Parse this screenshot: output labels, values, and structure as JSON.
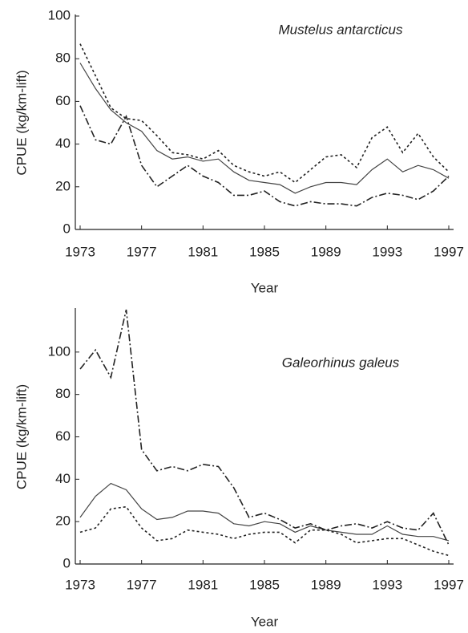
{
  "chart_data": [
    {
      "type": "line",
      "title": "Mustelus antarcticus",
      "x_label": "Year",
      "y_label": "CPUE (kg/km-lift)",
      "x": [
        1973,
        1974,
        1975,
        1976,
        1977,
        1978,
        1979,
        1980,
        1981,
        1982,
        1983,
        1984,
        1985,
        1986,
        1987,
        1988,
        1989,
        1990,
        1991,
        1992,
        1993,
        1994,
        1995,
        1996,
        1997
      ],
      "xlim": [
        1973,
        1997
      ],
      "xticks": [
        1973,
        1977,
        1981,
        1985,
        1989,
        1993,
        1997
      ],
      "ylim": [
        0,
        100
      ],
      "yticks": [
        0,
        20,
        40,
        60,
        80,
        100
      ],
      "series": [
        {
          "color": "#444444",
          "dash": "none",
          "values": [
            78,
            66,
            56,
            50,
            46,
            37,
            33,
            34,
            32,
            33,
            27,
            23,
            22,
            21,
            17,
            20,
            22,
            22,
            21,
            28,
            33,
            27,
            30,
            28,
            24
          ]
        },
        {
          "color": "#222222",
          "dash": "3,3",
          "values": [
            87,
            72,
            57,
            52,
            51,
            44,
            36,
            35,
            33,
            37,
            30,
            27,
            25,
            27,
            22,
            28,
            34,
            35,
            29,
            43,
            48,
            36,
            45,
            34,
            27
          ]
        },
        {
          "color": "#222222",
          "dash": "9,3,2,3",
          "values": [
            58,
            42,
            40,
            53,
            30,
            20,
            25,
            30,
            25,
            22,
            16,
            16,
            18,
            13,
            11,
            13,
            12,
            12,
            11,
            15,
            17,
            16,
            14,
            18,
            25
          ]
        }
      ]
    },
    {
      "type": "line",
      "title": "Galeorhinus galeus",
      "x_label": "Year",
      "y_label": "CPUE (kg/km-lift)",
      "x": [
        1973,
        1974,
        1975,
        1976,
        1977,
        1978,
        1979,
        1980,
        1981,
        1982,
        1983,
        1984,
        1985,
        1986,
        1987,
        1988,
        1989,
        1990,
        1991,
        1992,
        1993,
        1994,
        1995,
        1996,
        1997
      ],
      "xlim": [
        1973,
        1997
      ],
      "xticks": [
        1973,
        1977,
        1981,
        1985,
        1989,
        1993,
        1997
      ],
      "ylim": [
        0,
        120
      ],
      "yticks": [
        0,
        20,
        40,
        60,
        80,
        100
      ],
      "series": [
        {
          "color": "#444444",
          "dash": "none",
          "values": [
            22,
            32,
            38,
            35,
            26,
            21,
            22,
            25,
            25,
            24,
            19,
            18,
            20,
            19,
            15,
            18,
            16,
            15,
            14,
            14,
            18,
            14,
            13,
            13,
            11
          ]
        },
        {
          "color": "#222222",
          "dash": "3,3",
          "values": [
            15,
            17,
            26,
            27,
            17,
            11,
            12,
            16,
            15,
            14,
            12,
            14,
            15,
            15,
            10,
            16,
            16,
            14,
            10,
            11,
            12,
            12,
            9,
            6,
            4
          ]
        },
        {
          "color": "#222222",
          "dash": "9,3,2,3",
          "values": [
            92,
            101,
            88,
            120,
            54,
            44,
            46,
            44,
            47,
            46,
            36,
            22,
            24,
            21,
            17,
            19,
            16,
            18,
            19,
            17,
            20,
            17,
            16,
            24,
            9
          ]
        }
      ]
    }
  ]
}
